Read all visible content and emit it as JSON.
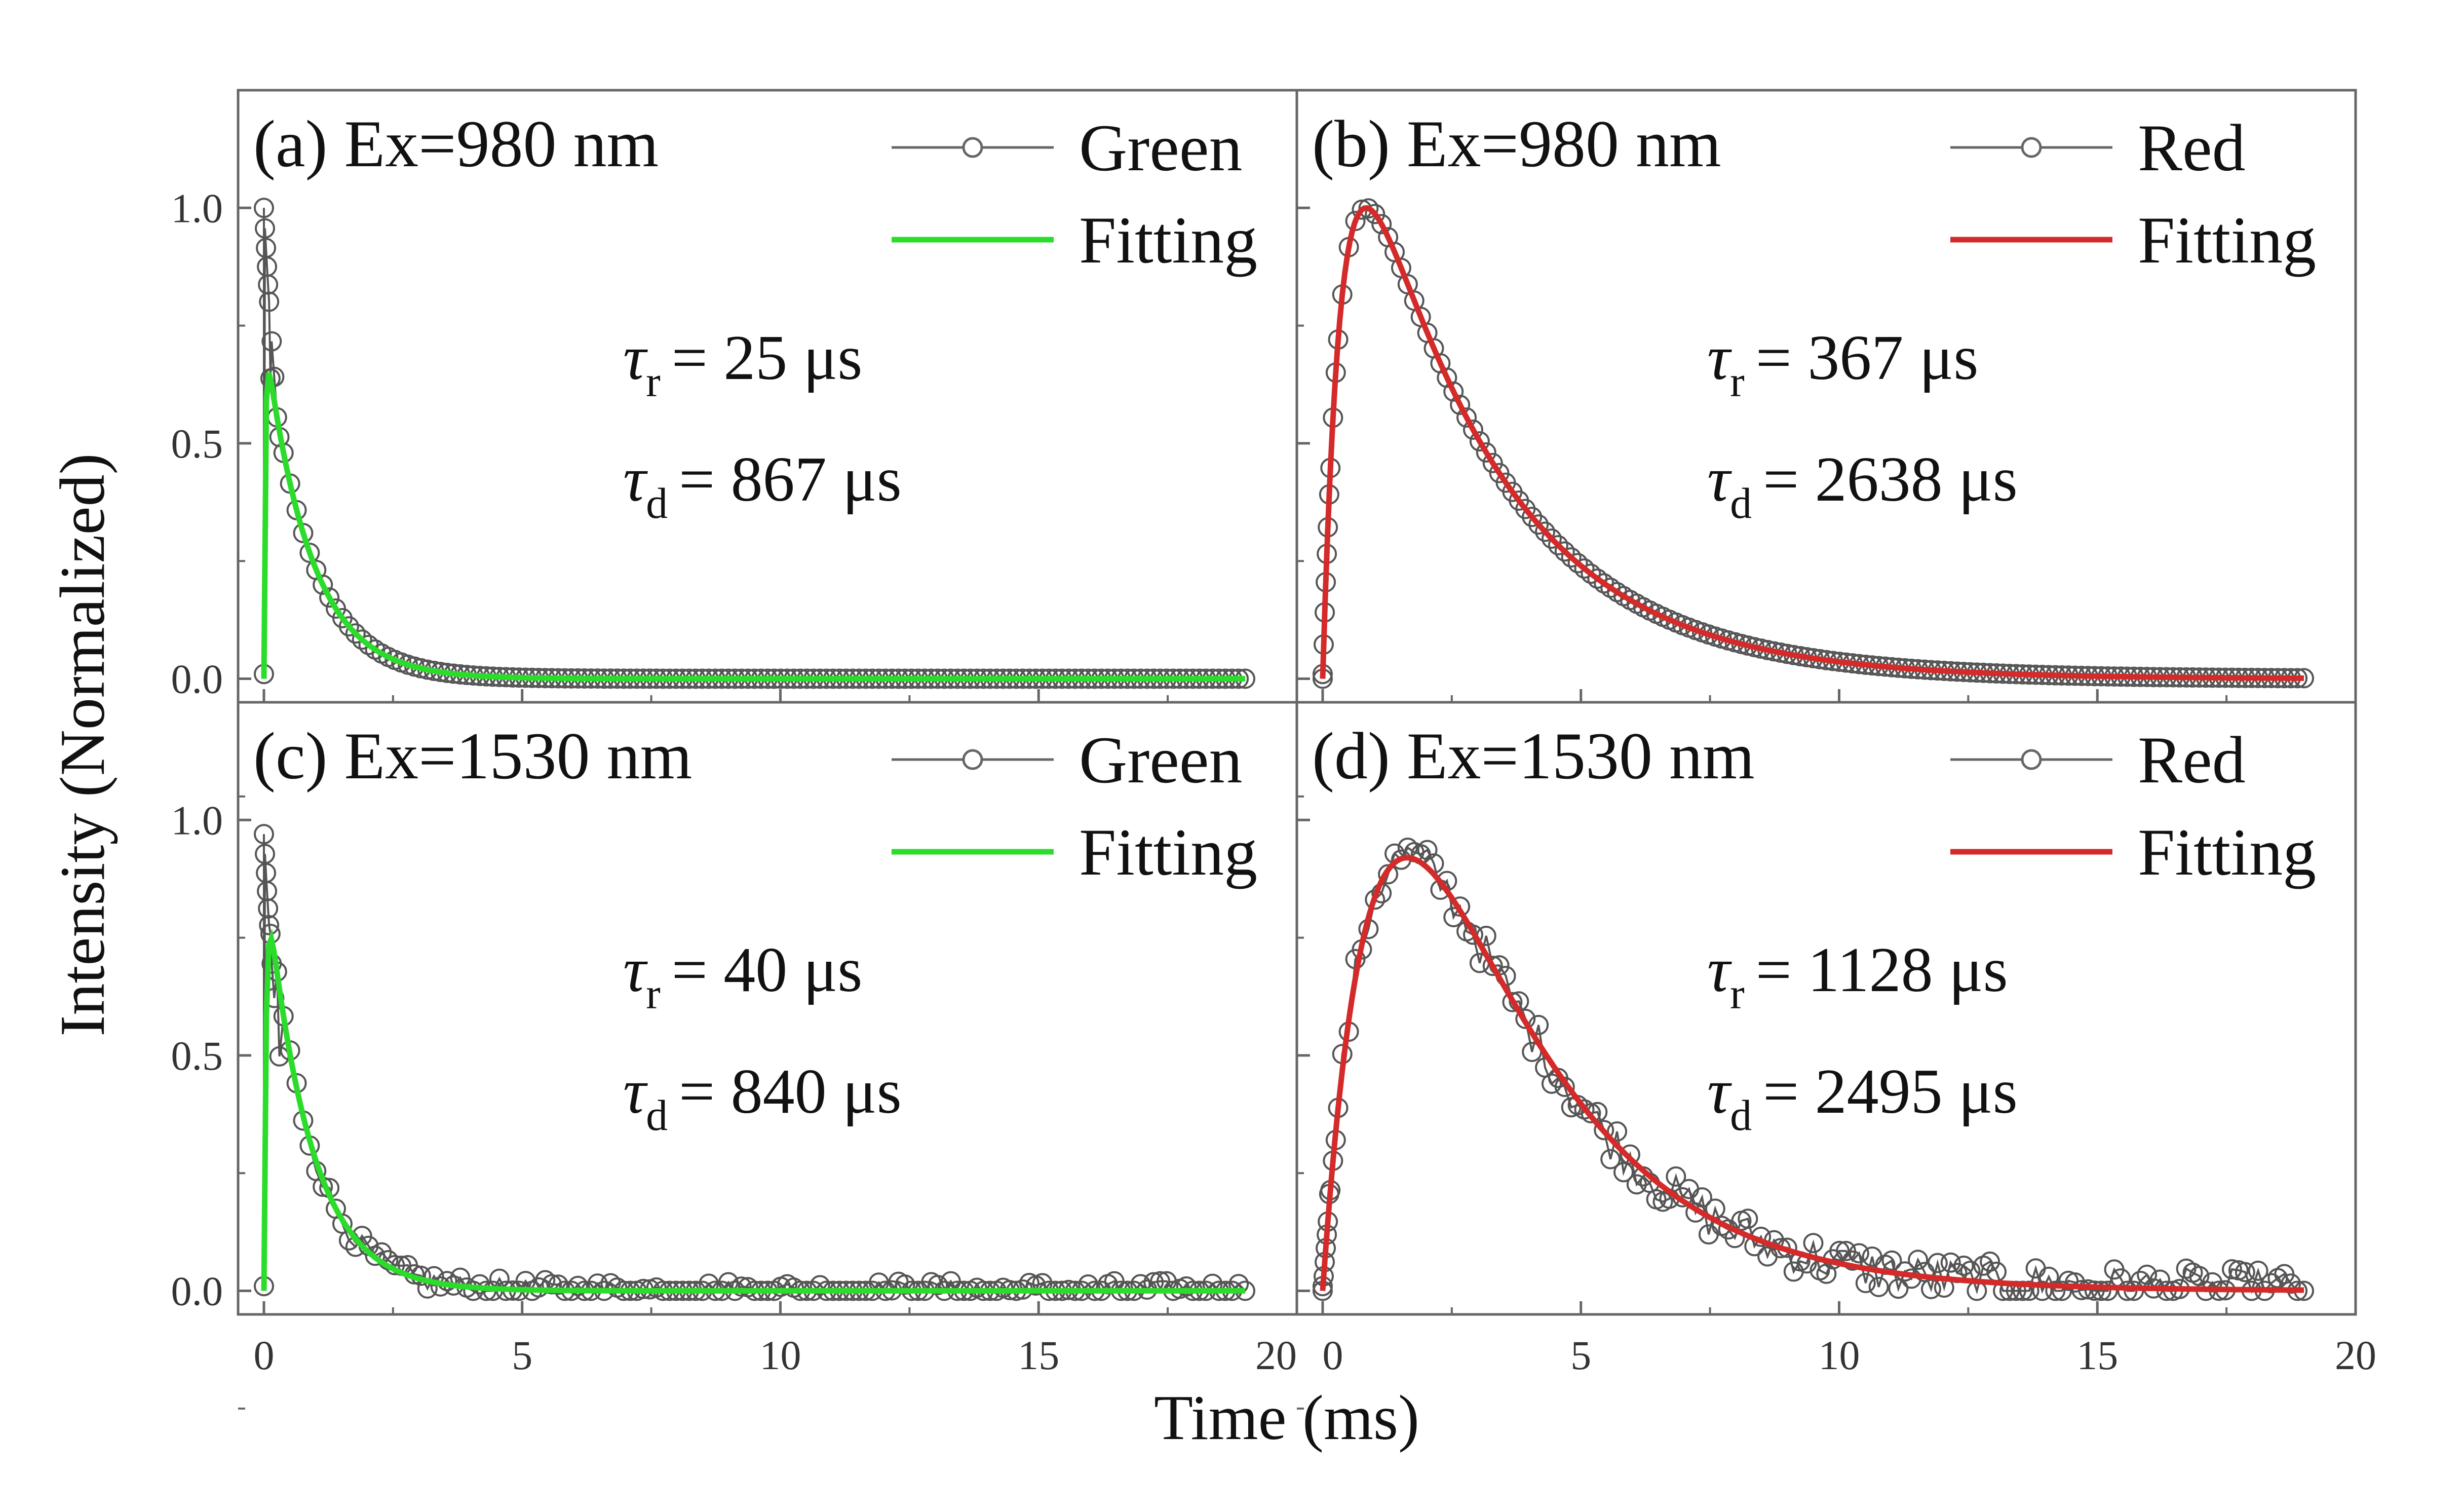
{
  "chart_data": {
    "type": "line",
    "xlabel": "Time (ms)",
    "ylabel": "Intensity (Normalized)",
    "x_ticks": [
      "0",
      "5",
      "10",
      "15",
      "20"
    ],
    "y_ticks": [
      "0.0",
      "0.5",
      "1.0"
    ],
    "xlim": [
      -0.5,
      20
    ],
    "ylim": [
      -0.05,
      1.25
    ],
    "colors": {
      "data": "#555555",
      "green": "#2bdc2b",
      "red": "#d42a2a"
    },
    "panels": [
      {
        "id": "a",
        "title": "(a) Ex=980 nm",
        "data_label": "Green",
        "fit_label": "Fitting",
        "fit_color": "#2bdc2b",
        "tau_r": "= 25 μs",
        "tau_d": "= 867 μs",
        "rise_ms": 0.025,
        "decay_ms": 0.867,
        "peak": 1.0,
        "fit_peak": 0.65,
        "noise": 0.0
      },
      {
        "id": "b",
        "title": "(b) Ex=980 nm",
        "data_label": "Red",
        "fit_label": "Fitting",
        "fit_color": "#d42a2a",
        "tau_r": "= 367 μs",
        "tau_d": "= 2638 μs",
        "rise_ms": 0.367,
        "decay_ms": 2.638,
        "peak": 1.0,
        "fit_peak": 1.0,
        "noise": 0.0
      },
      {
        "id": "c",
        "title": "(c) Ex=1530 nm",
        "data_label": "Green",
        "fit_label": "Fitting",
        "fit_color": "#2bdc2b",
        "tau_r": "= 40 μs",
        "tau_d": "= 840 μs",
        "rise_ms": 0.04,
        "decay_ms": 0.84,
        "peak": 0.97,
        "fit_peak": 0.75,
        "noise": 0.02
      },
      {
        "id": "d",
        "title": "(d) Ex=1530 nm",
        "data_label": "Red",
        "fit_label": "Fitting",
        "fit_color": "#d42a2a",
        "tau_r": "= 1128 μs",
        "tau_d": "= 2495 μs",
        "rise_ms": 1.128,
        "decay_ms": 2.495,
        "peak": 0.92,
        "fit_peak": 0.92,
        "noise": 0.04
      }
    ]
  }
}
